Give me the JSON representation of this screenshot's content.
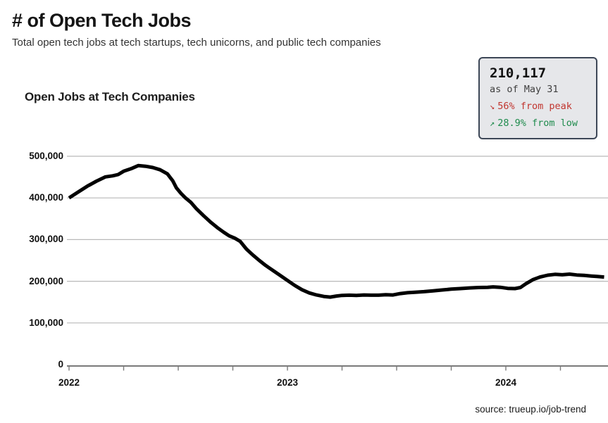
{
  "page": {
    "title": "# of Open Tech Jobs",
    "subtitle": "Total open tech jobs at tech startups, tech unicorns, and public tech companies",
    "source": "source: trueup.io/job-trend"
  },
  "stats_box": {
    "value": "210,117",
    "as_of": "as of May 31",
    "peak_delta": {
      "arrow": "↘",
      "text": "56% from peak",
      "color": "#c1352f"
    },
    "low_delta": {
      "arrow": "↗",
      "text": "28.9% from low",
      "color": "#1f8b4d"
    },
    "background": "#e6e7ea",
    "border_color": "#3d4757"
  },
  "chart_data": {
    "type": "line",
    "title": "Open Jobs at Tech Companies",
    "xlabel": "",
    "ylabel": "",
    "x_unit": "months since Jan 2022",
    "xlim_months": [
      0,
      29.6
    ],
    "ylim": [
      0,
      520000
    ],
    "grid": "horizontal",
    "line_color": "#000000",
    "line_width": 5,
    "y_ticks": [
      {
        "label": "500,000",
        "value": 500000
      },
      {
        "label": "400,000",
        "value": 400000
      },
      {
        "label": "300,000",
        "value": 300000
      },
      {
        "label": "200,000",
        "value": 200000
      },
      {
        "label": "100,000",
        "value": 100000
      },
      {
        "label": "0",
        "value": 0
      }
    ],
    "x_year_labels": [
      {
        "label": "2022",
        "month": 0
      },
      {
        "label": "2023",
        "month": 12
      },
      {
        "label": "2024",
        "month": 24
      }
    ],
    "minor_tick_every_months": 3,
    "series": [
      {
        "name": "Open jobs at tech companies",
        "points": [
          [
            0,
            400000
          ],
          [
            0.5,
            414000
          ],
          [
            1,
            428000
          ],
          [
            1.5,
            440000
          ],
          [
            2,
            450500
          ],
          [
            2.4,
            453000
          ],
          [
            2.7,
            456000
          ],
          [
            3,
            464000
          ],
          [
            3.4,
            470000
          ],
          [
            3.8,
            477500
          ],
          [
            4.2,
            476000
          ],
          [
            4.6,
            473000
          ],
          [
            5,
            467500
          ],
          [
            5.4,
            458000
          ],
          [
            5.7,
            441000
          ],
          [
            5.9,
            424000
          ],
          [
            6.15,
            411000
          ],
          [
            6.4,
            400000
          ],
          [
            6.7,
            389000
          ],
          [
            7,
            374000
          ],
          [
            7.4,
            357000
          ],
          [
            7.8,
            341000
          ],
          [
            8.2,
            327000
          ],
          [
            8.5,
            317500
          ],
          [
            8.8,
            309000
          ],
          [
            9.1,
            303500
          ],
          [
            9.4,
            296000
          ],
          [
            9.75,
            277000
          ],
          [
            10.1,
            263000
          ],
          [
            10.45,
            250000
          ],
          [
            10.8,
            238000
          ],
          [
            11.2,
            226000
          ],
          [
            11.6,
            214000
          ],
          [
            12,
            202000
          ],
          [
            12.4,
            190000
          ],
          [
            12.8,
            179500
          ],
          [
            13.2,
            172000
          ],
          [
            13.6,
            167000
          ],
          [
            14,
            163500
          ],
          [
            14.35,
            162000
          ],
          [
            14.7,
            164500
          ],
          [
            15,
            166000
          ],
          [
            15.4,
            166500
          ],
          [
            15.8,
            166000
          ],
          [
            16.2,
            167000
          ],
          [
            16.6,
            166500
          ],
          [
            17,
            166500
          ],
          [
            17.4,
            167500
          ],
          [
            17.8,
            167000
          ],
          [
            18.2,
            170500
          ],
          [
            18.6,
            172500
          ],
          [
            19,
            173500
          ],
          [
            19.5,
            175000
          ],
          [
            20,
            177000
          ],
          [
            20.5,
            179000
          ],
          [
            21,
            181000
          ],
          [
            21.5,
            182500
          ],
          [
            22,
            184000
          ],
          [
            22.5,
            185000
          ],
          [
            23,
            185500
          ],
          [
            23.3,
            186500
          ],
          [
            23.7,
            185500
          ],
          [
            24.1,
            183000
          ],
          [
            24.5,
            182500
          ],
          [
            24.8,
            185000
          ],
          [
            25.1,
            194000
          ],
          [
            25.5,
            204000
          ],
          [
            25.9,
            210500
          ],
          [
            26.3,
            214500
          ],
          [
            26.7,
            216500
          ],
          [
            27.1,
            215500
          ],
          [
            27.5,
            217000
          ],
          [
            27.9,
            215000
          ],
          [
            28.3,
            214000
          ],
          [
            28.7,
            212500
          ],
          [
            29,
            211500
          ],
          [
            29.4,
            210117
          ]
        ]
      }
    ],
    "latest_label": {
      "value": "210,117",
      "as_of": "as of May 31"
    }
  }
}
